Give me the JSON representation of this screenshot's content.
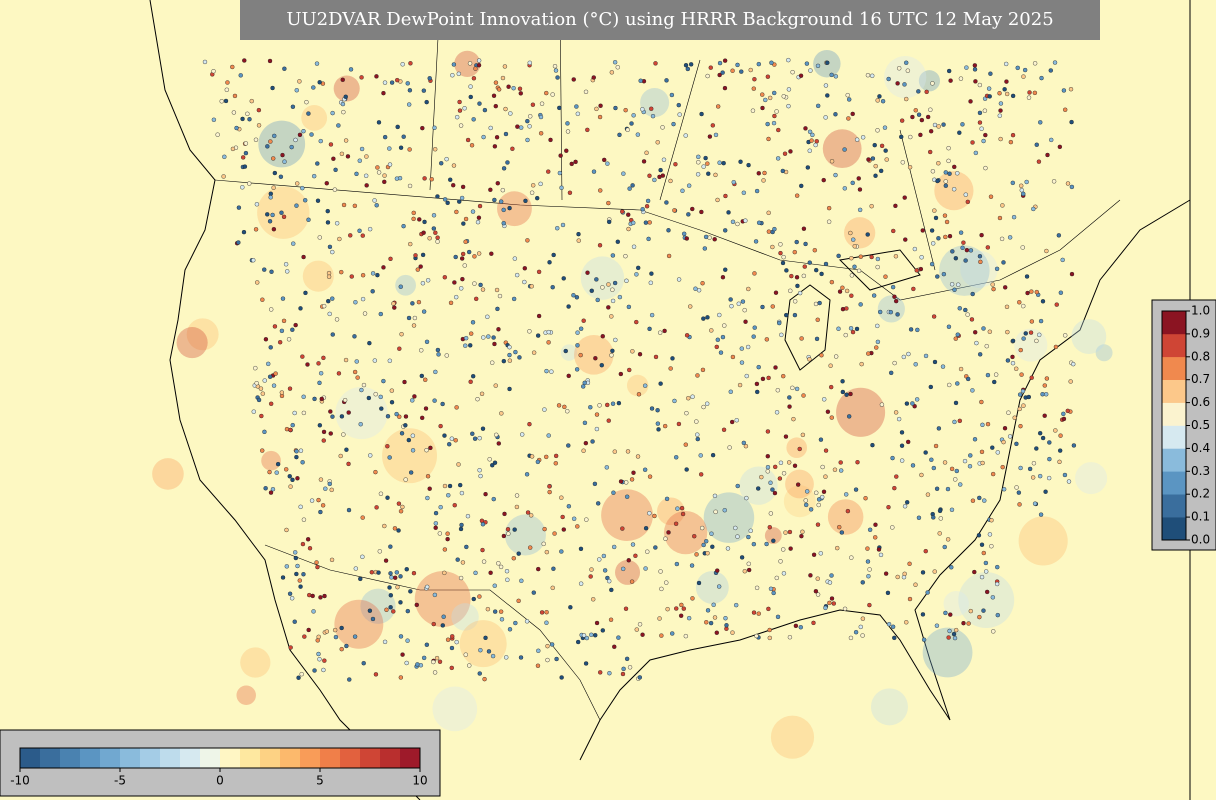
{
  "title": "UU2DVAR DewPoint Innovation (°C) using HRRR Background 16 UTC 12 May 2025",
  "innovation_colorbar": {
    "lim": [
      -10,
      10
    ],
    "ticks": [
      -10,
      -5,
      0,
      5,
      10
    ],
    "colors": [
      "#2b5b8a",
      "#3a6e9d",
      "#4a82b0",
      "#5b95c2",
      "#71a8d0",
      "#8abbdc",
      "#a4cce6",
      "#bedcec",
      "#d6e9f0",
      "#eef5e8",
      "#fff6c4",
      "#fee8a0",
      "#fdd284",
      "#fcb96c",
      "#f99c58",
      "#f07f49",
      "#e2613e",
      "#cf4535",
      "#b92f2e",
      "#9e1a2a"
    ]
  },
  "observation_colorbar": {
    "lim": [
      0,
      1
    ],
    "ticks": [
      {
        "value": 0,
        "label": "0.0"
      },
      {
        "value": 0.1,
        "label": "0.1"
      },
      {
        "value": 0.2,
        "label": "0.2"
      },
      {
        "value": 0.3,
        "label": "0.3"
      },
      {
        "value": 0.4,
        "label": "0.4"
      },
      {
        "value": 0.5,
        "label": "0.5"
      },
      {
        "value": 0.6,
        "label": "0.6"
      },
      {
        "value": 0.7,
        "label": "0.7"
      },
      {
        "value": 0.8,
        "label": "0.8"
      },
      {
        "value": 0.9,
        "label": "0.9"
      },
      {
        "value": 1,
        "label": "1.0"
      }
    ],
    "colors": [
      "#1f4e79",
      "#3a6e9d",
      "#5b95c2",
      "#8abbdc",
      "#d6e9f0",
      "#fbf3cf",
      "#fcc88a",
      "#f0894e",
      "#cf4535",
      "#8b1422"
    ]
  }
}
